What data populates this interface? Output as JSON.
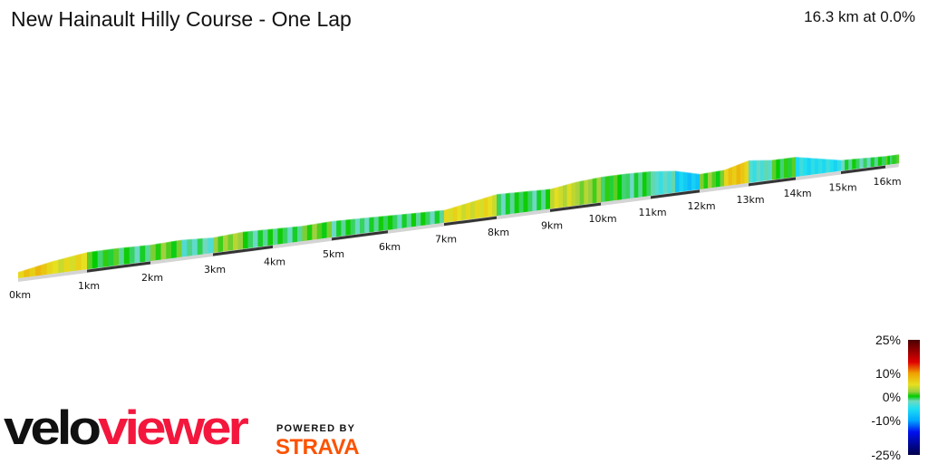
{
  "header": {
    "title": "New Hainault Hilly Course - One Lap",
    "summary": "16.3 km at 0.0%"
  },
  "chart_data": {
    "type": "area",
    "title": "New Hainault Hilly Course - One Lap",
    "subtitle": "16.3 km at 0.0%",
    "x_unit": "km",
    "x_range": [
      0,
      16.3
    ],
    "tick_labels": [
      "0km",
      "1km",
      "2km",
      "3km",
      "4km",
      "5km",
      "6km",
      "7km",
      "8km",
      "9km",
      "10km",
      "11km",
      "12km",
      "13km",
      "14km",
      "15km",
      "16km"
    ],
    "segments_km_step": 0.5,
    "segment_grades_percent": [
      7,
      5,
      0,
      -1,
      1,
      -2,
      2,
      -1,
      -1,
      1,
      -1,
      -1,
      -1,
      -1,
      5,
      5,
      -1,
      -1,
      4,
      2,
      0,
      -1,
      -3,
      -7,
      1,
      7,
      -3,
      0,
      -5,
      -5,
      -1,
      -1,
      0
    ],
    "color_scale": {
      "labels": [
        "25%",
        "10%",
        "0%",
        "-10%",
        "-25%"
      ],
      "stops": [
        {
          "grade": 25,
          "color": "#4a0000"
        },
        {
          "grade": 15,
          "color": "#e00000"
        },
        {
          "grade": 10,
          "color": "#f0a000"
        },
        {
          "grade": 5,
          "color": "#e6e020"
        },
        {
          "grade": 2,
          "color": "#9ad040"
        },
        {
          "grade": 0,
          "color": "#00cc00"
        },
        {
          "grade": -2,
          "color": "#70d8c0"
        },
        {
          "grade": -5,
          "color": "#20e0f0"
        },
        {
          "grade": -10,
          "color": "#00a8ff"
        },
        {
          "grade": -15,
          "color": "#0010f0"
        },
        {
          "grade": -25,
          "color": "#00004a"
        }
      ]
    },
    "grid": false,
    "legend": "bottom-right"
  },
  "branding": {
    "logo_velo": "velo",
    "logo_viewer": "viewer",
    "powered_by": "POWERED BY",
    "strava": "STRAVA"
  }
}
